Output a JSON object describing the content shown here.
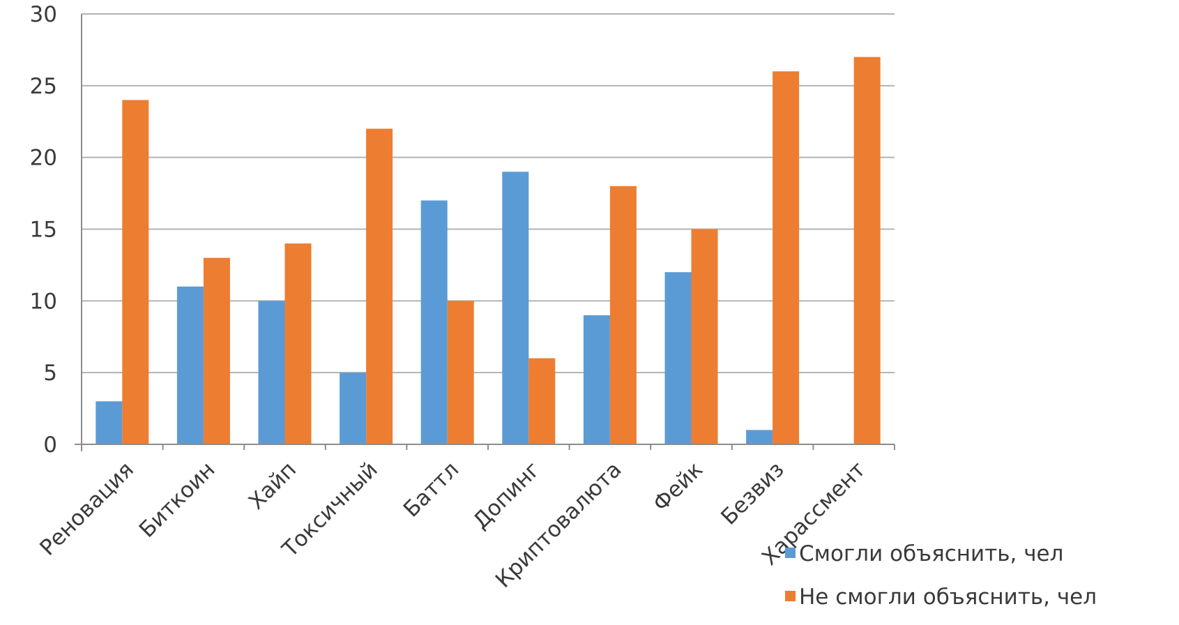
{
  "chart_data": {
    "type": "bar",
    "categories": [
      "Реновация",
      "Биткоин",
      "Хайп",
      "Токсичный",
      "Баттл",
      "Допинг",
      "Криптовалюта",
      "Фейк",
      "Безвиз",
      "Харассмент"
    ],
    "series": [
      {
        "name": "Смогли объяснить, чел",
        "color": "#5B9BD5",
        "values": [
          3,
          11,
          10,
          5,
          17,
          19,
          9,
          12,
          1,
          0
        ]
      },
      {
        "name": "Не смогли объяснить, чел",
        "color": "#ED7D31",
        "values": [
          24,
          13,
          14,
          22,
          10,
          6,
          18,
          15,
          26,
          27
        ]
      }
    ],
    "ylim": [
      0,
      30
    ],
    "yticks": [
      0,
      5,
      10,
      15,
      20,
      25,
      30
    ],
    "grid": true,
    "legend": "bottom-right"
  }
}
